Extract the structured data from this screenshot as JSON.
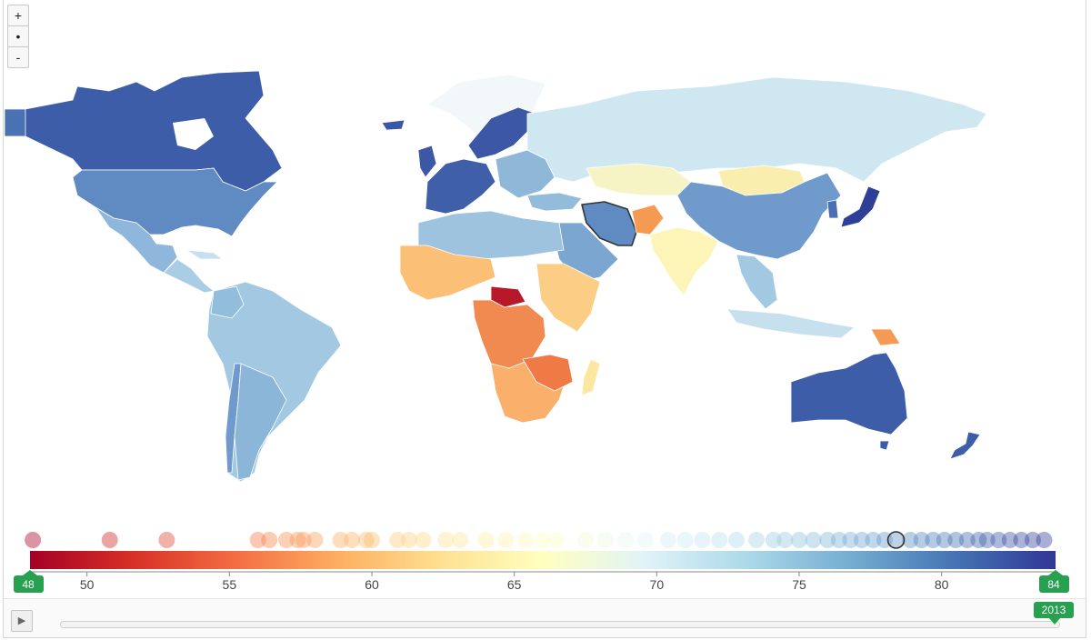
{
  "zoom": {
    "in_label": "+",
    "reset_label": "•",
    "out_label": "-"
  },
  "legend": {
    "min_label": "48",
    "max_label": "84",
    "min": 48,
    "max": 84,
    "ticks": [
      50,
      55,
      60,
      65,
      70,
      75,
      80
    ],
    "dots": [
      48.1,
      50.8,
      52.8,
      56.0,
      56.4,
      57.0,
      57.4,
      57.6,
      58.0,
      58.9,
      59.3,
      59.8,
      60.0,
      60.9,
      61.3,
      61.8,
      62.6,
      63.1,
      64.0,
      64.7,
      65.4,
      66.0,
      66.5,
      67.5,
      68.2,
      68.9,
      69.6,
      70.4,
      71.0,
      71.6,
      72.2,
      72.8,
      73.5,
      74.1,
      74.5,
      75.0,
      75.5,
      76.0,
      76.4,
      76.8,
      77.2,
      77.6,
      78.0,
      78.4,
      78.9,
      79.3,
      79.7,
      80.1,
      80.5,
      80.9,
      81.3,
      81.6,
      82.0,
      82.4,
      82.8,
      83.2,
      83.6
    ],
    "highlight": 78.4,
    "colors": [
      "#a50026",
      "#d73027",
      "#f46d43",
      "#fdae61",
      "#fee090",
      "#ffffbf",
      "#e0f3f8",
      "#abd9e9",
      "#74add1",
      "#4575b4",
      "#313695"
    ]
  },
  "timeline": {
    "year": "2013",
    "play_icon": "play-icon"
  }
}
